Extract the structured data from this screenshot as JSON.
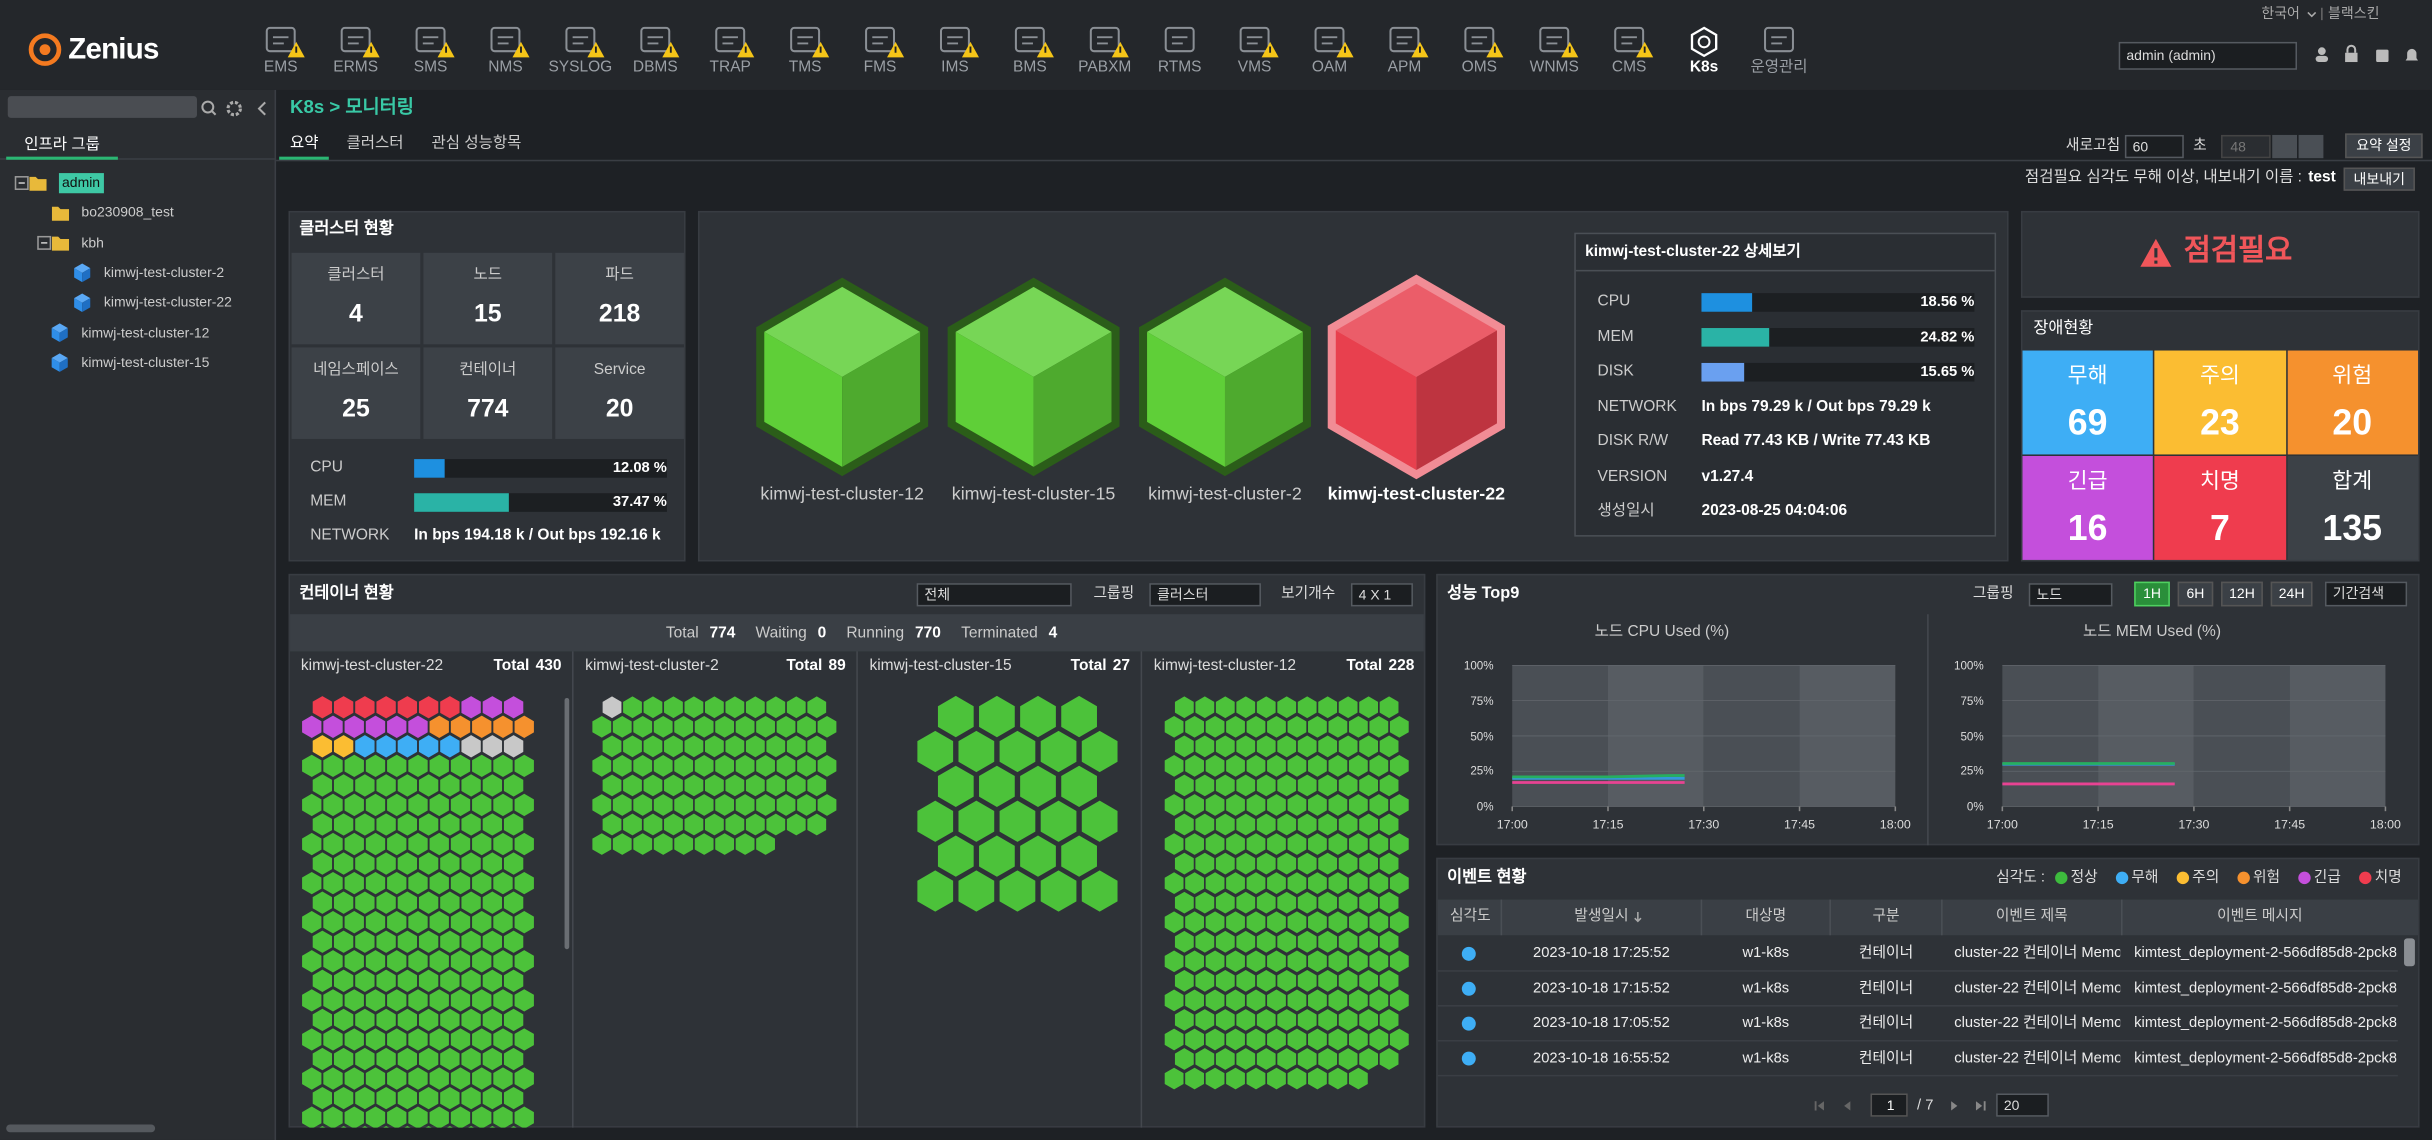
{
  "header": {
    "brand": "Zenius",
    "language": "한국어",
    "skin": "블랙스킨",
    "user": "admin (admin)",
    "nav": [
      {
        "label": "EMS",
        "warning": true
      },
      {
        "label": "ERMS",
        "warning": true
      },
      {
        "label": "SMS",
        "warning": true
      },
      {
        "label": "NMS",
        "warning": true
      },
      {
        "label": "SYSLOG",
        "warning": true
      },
      {
        "label": "DBMS",
        "warning": true
      },
      {
        "label": "TRAP",
        "warning": true
      },
      {
        "label": "TMS",
        "warning": true
      },
      {
        "label": "FMS",
        "warning": true
      },
      {
        "label": "IMS",
        "warning": true
      },
      {
        "label": "BMS",
        "warning": true
      },
      {
        "label": "PABXM",
        "warning": true
      },
      {
        "label": "RTMS",
        "warning": false
      },
      {
        "label": "VMS",
        "warning": true
      },
      {
        "label": "OAM",
        "warning": true
      },
      {
        "label": "APM",
        "warning": true
      },
      {
        "label": "OMS",
        "warning": true
      },
      {
        "label": "WNMS",
        "warning": true
      },
      {
        "label": "CMS",
        "warning": true
      },
      {
        "label": "K8s",
        "warning": false,
        "active": true
      },
      {
        "label": "운영관리",
        "warning": false
      }
    ]
  },
  "sidebar": {
    "tab": "인프라 그룹",
    "tree": [
      {
        "label": "admin",
        "level": 0,
        "icon": "folder",
        "selected": true
      },
      {
        "label": "bo230908_test",
        "level": 1,
        "icon": "folder"
      },
      {
        "label": "kbh",
        "level": 1,
        "icon": "folder"
      },
      {
        "label": "kimwj-test-cluster-2",
        "level": 2,
        "icon": "cube"
      },
      {
        "label": "kimwj-test-cluster-22",
        "level": 2,
        "icon": "cube"
      },
      {
        "label": "kimwj-test-cluster-12",
        "level": 1,
        "icon": "cube"
      },
      {
        "label": "kimwj-test-cluster-15",
        "level": 1,
        "icon": "cube"
      }
    ]
  },
  "breadcrumb": "K8s > 모니터링",
  "tabs": [
    {
      "label": "요약",
      "active": true
    },
    {
      "label": "클러스터"
    },
    {
      "label": "관심 성능항목"
    }
  ],
  "toolbar": {
    "refresh_label": "새로고침",
    "refresh_value": "60",
    "unit": "초",
    "countdown": "48",
    "settings": "요약 설정",
    "notice": "점검필요 심각도 무해 이상, 내보내기 이름 :",
    "export_name": "test",
    "export": "내보내기"
  },
  "cluster_status": {
    "title": "클러스터 현황",
    "stats": [
      {
        "label": "클러스터",
        "value": 4
      },
      {
        "label": "노드",
        "value": 15
      },
      {
        "label": "파드",
        "value": 218
      },
      {
        "label": "네임스페이스",
        "value": 25
      },
      {
        "label": "컨테이너",
        "value": 774
      },
      {
        "label": "Service",
        "value": 20
      }
    ],
    "usage": [
      {
        "label": "CPU",
        "value": 12.08,
        "value_label": "12.08 %",
        "color": "#1e90e0"
      },
      {
        "label": "MEM",
        "value": 37.47,
        "value_label": "37.47 %",
        "color": "#2ab3a6"
      }
    ],
    "network_label": "NETWORK",
    "network": "In bps 194.18 k / Out bps 192.16 k"
  },
  "clusters": [
    {
      "name": "kimwj-test-cluster-12",
      "color": "#5fcf38"
    },
    {
      "name": "kimwj-test-cluster-15",
      "color": "#5fcf38"
    },
    {
      "name": "kimwj-test-cluster-2",
      "color": "#5fcf38"
    },
    {
      "name": "kimwj-test-cluster-22",
      "color": "#e8404e",
      "selected": true
    }
  ],
  "detail": {
    "title": "kimwj-test-cluster-22 상세보기",
    "usage": [
      {
        "label": "CPU",
        "value": 18.56,
        "value_label": "18.56 %",
        "color": "#1e90e0"
      },
      {
        "label": "MEM",
        "value": 24.82,
        "value_label": "24.82 %",
        "color": "#2ab3a6"
      },
      {
        "label": "DISK",
        "value": 15.65,
        "value_label": "15.65 %",
        "color": "#6aa0f0"
      }
    ],
    "rows": [
      {
        "label": "NETWORK",
        "value": "In bps 79.29 k / Out bps 79.29 k"
      },
      {
        "label": "DISK R/W",
        "value": "Read 77.43 KB / Write 77.43 KB"
      },
      {
        "label": "VERSION",
        "value": "v1.27.4"
      },
      {
        "label": "생성일시",
        "value": "2023-08-25 04:04:06"
      }
    ]
  },
  "alert": {
    "status": "점검필요",
    "title": "장애현황",
    "cells": [
      {
        "label": "무해",
        "value": 69,
        "color": "#3eaef5"
      },
      {
        "label": "주의",
        "value": 23,
        "color": "#fbbd32"
      },
      {
        "label": "위험",
        "value": 20,
        "color": "#f5912e"
      },
      {
        "label": "긴급",
        "value": 16,
        "color": "#c44fdc"
      },
      {
        "label": "치명",
        "value": 7,
        "color": "#ef3c4e"
      },
      {
        "label": "합계",
        "value": 135,
        "color": "#3c4147"
      }
    ]
  },
  "containers": {
    "title": "컨테이너 현황",
    "filter": "전체",
    "grouping_label": "그룹핑",
    "grouping": "클러스터",
    "view_label": "보기개수",
    "view": "4 X 1",
    "total_label": "Total",
    "summary": [
      {
        "label": "Total",
        "value": 774
      },
      {
        "label": "Waiting",
        "value": 0
      },
      {
        "label": "Running",
        "value": 770
      },
      {
        "label": "Terminated",
        "value": 4
      }
    ],
    "groups": [
      {
        "name": "kimwj-test-cluster-22",
        "total": 430,
        "pods": [
          {
            "color": "#ef3c4e",
            "count": 7
          },
          {
            "color": "#c44fdc",
            "count": 9
          },
          {
            "color": "#f5912e",
            "count": 5
          },
          {
            "color": "#fbbd32",
            "count": 2
          },
          {
            "color": "#3eaef5",
            "count": 5
          },
          {
            "color": "#c8c8c8",
            "count": 3
          },
          {
            "color": "#4cc23a",
            "count": 399
          }
        ]
      },
      {
        "name": "kimwj-test-cluster-2",
        "total": 89,
        "pods": [
          {
            "color": "#c8c8c8",
            "count": 1
          },
          {
            "color": "#4cc23a",
            "count": 88
          }
        ]
      },
      {
        "name": "kimwj-test-cluster-15",
        "total": 27,
        "pods": [
          {
            "color": "#4cc23a",
            "count": 27
          }
        ]
      },
      {
        "name": "kimwj-test-cluster-12",
        "total": 228,
        "pods": [
          {
            "color": "#4cc23a",
            "count": 228
          }
        ]
      }
    ]
  },
  "perf": {
    "title": "성능 Top9",
    "grouping_label": "그룹핑",
    "grouping": "노드",
    "search": "기간검색",
    "ranges": [
      {
        "label": "1H",
        "active": true
      },
      {
        "label": "6H"
      },
      {
        "label": "12H"
      },
      {
        "label": "24H"
      }
    ],
    "charts": [
      {
        "type": "line",
        "title": "노드 CPU Used (%)",
        "x": [
          0,
          5,
          10,
          15,
          20,
          25,
          27
        ],
        "xlim": [
          0,
          60
        ],
        "xticks": [
          {
            "value": 0,
            "label": "17:00"
          },
          {
            "value": 15,
            "label": "17:15"
          },
          {
            "value": 30,
            "label": "17:30"
          },
          {
            "value": 45,
            "label": "17:45"
          },
          {
            "value": 60,
            "label": "18:00"
          }
        ],
        "ylim": [
          0,
          100
        ],
        "yticks": [
          {
            "value": 0,
            "label": "0%"
          },
          {
            "value": 25,
            "label": "25%"
          },
          {
            "value": 50,
            "label": "50%"
          },
          {
            "value": 75,
            "label": "75%"
          },
          {
            "value": 100,
            "label": "100%"
          }
        ],
        "series": [
          {
            "color": "#3498db",
            "values": [
              20,
              20,
              20,
              20,
              20,
              20,
              20
            ]
          },
          {
            "color": "#e84393",
            "values": [
              17,
              17,
              17,
              17,
              17,
              17,
              17
            ]
          },
          {
            "color": "#27ae60",
            "values": [
              21,
              21,
              21,
              21,
              21.5,
              22,
              22
            ]
          }
        ]
      },
      {
        "type": "line",
        "title": "노드 MEM Used (%)",
        "x": [
          0,
          5,
          10,
          15,
          20,
          25,
          27
        ],
        "xlim": [
          0,
          60
        ],
        "xticks": [
          {
            "value": 0,
            "label": "17:00"
          },
          {
            "value": 15,
            "label": "17:15"
          },
          {
            "value": 30,
            "label": "17:30"
          },
          {
            "value": 45,
            "label": "17:45"
          },
          {
            "value": 60,
            "label": "18:00"
          }
        ],
        "ylim": [
          0,
          100
        ],
        "yticks": [
          {
            "value": 0,
            "label": "0%"
          },
          {
            "value": 25,
            "label": "25%"
          },
          {
            "value": 50,
            "label": "50%"
          },
          {
            "value": 75,
            "label": "75%"
          },
          {
            "value": 100,
            "label": "100%"
          }
        ],
        "series": [
          {
            "color": "#3498db",
            "values": [
              30,
              30,
              30,
              30,
              30,
              30,
              30
            ]
          },
          {
            "color": "#e84393",
            "values": [
              16,
              16,
              16,
              16,
              16,
              16,
              16
            ]
          },
          {
            "color": "#27ae60",
            "values": [
              30.5,
              30.5,
              30.5,
              30.5,
              30.5,
              30.5,
              30.5
            ]
          }
        ]
      }
    ]
  },
  "events": {
    "title": "이벤트 현황",
    "legend_label": "심각도 :",
    "legend": [
      {
        "label": "정상",
        "color": "#3dbb3d"
      },
      {
        "label": "무해",
        "color": "#3eaef5"
      },
      {
        "label": "주의",
        "color": "#fbbd32"
      },
      {
        "label": "위험",
        "color": "#f5912e"
      },
      {
        "label": "긴급",
        "color": "#c44fdc"
      },
      {
        "label": "치명",
        "color": "#ef3c4e"
      }
    ],
    "columns": [
      "심각도",
      "발생일시",
      "대상명",
      "구분",
      "이벤트 제목",
      "이벤트 메시지"
    ],
    "rows": [
      {
        "severity_color": "#3eaef5",
        "cells": [
          "2023-10-18 17:25:52",
          "w1-k8s",
          "컨테이너",
          "cluster-22 컨테이너 Memo",
          "kimtest_deployment-2-566df85d8-2pck8"
        ]
      },
      {
        "severity_color": "#3eaef5",
        "cells": [
          "2023-10-18 17:15:52",
          "w1-k8s",
          "컨테이너",
          "cluster-22 컨테이너 Memo",
          "kimtest_deployment-2-566df85d8-2pck8"
        ]
      },
      {
        "severity_color": "#3eaef5",
        "cells": [
          "2023-10-18 17:05:52",
          "w1-k8s",
          "컨테이너",
          "cluster-22 컨테이너 Memo",
          "kimtest_deployment-2-566df85d8-2pck8"
        ]
      },
      {
        "severity_color": "#3eaef5",
        "cells": [
          "2023-10-18 16:55:52",
          "w1-k8s",
          "컨테이너",
          "cluster-22 컨테이너 Memo",
          "kimtest_deployment-2-566df85d8-2pck8"
        ]
      }
    ],
    "page": "1",
    "pages": "/ 7",
    "page_size": "20"
  }
}
